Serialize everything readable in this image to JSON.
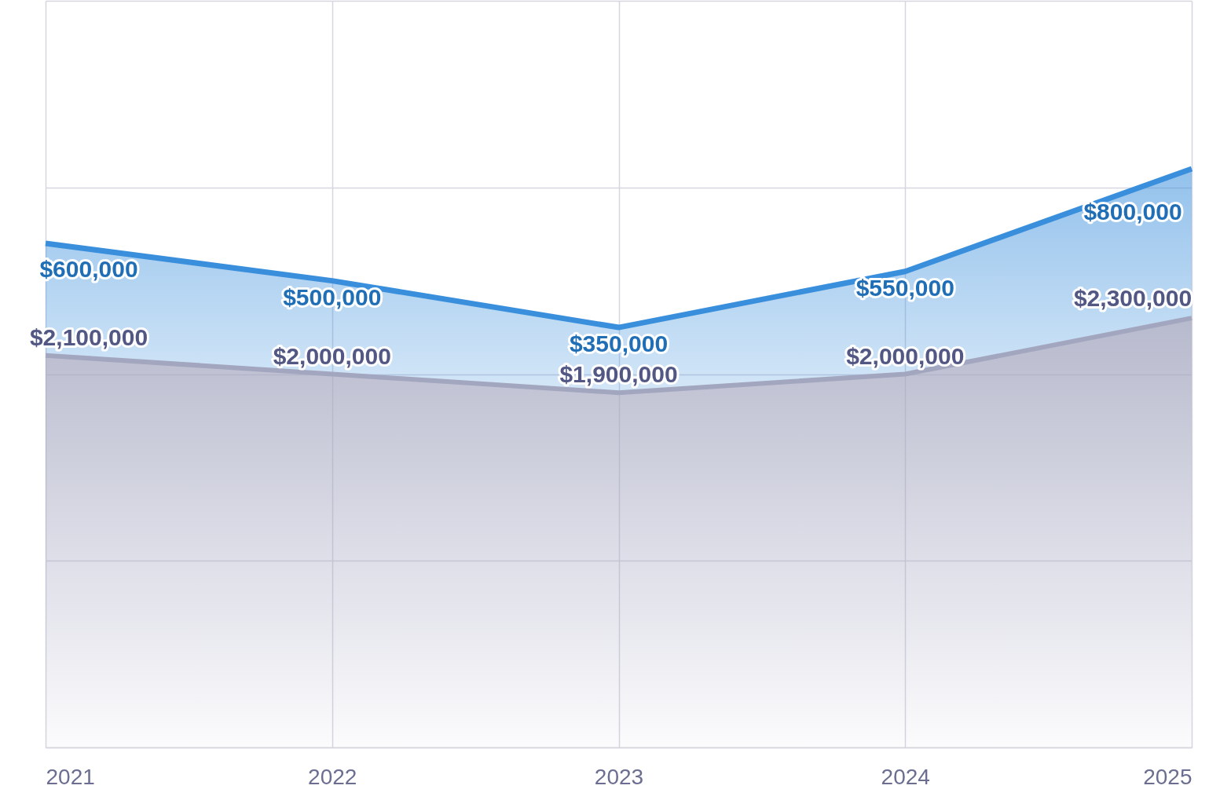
{
  "chart_data": {
    "type": "area",
    "stacked": true,
    "categories": [
      "2021",
      "2022",
      "2023",
      "2024",
      "2025"
    ],
    "series": [
      {
        "color": "#a3a6bf",
        "values": [
          2100000,
          2000000,
          1900000,
          2000000,
          2300000
        ],
        "value_labels": [
          "$2,100,000",
          "$2,000,000",
          "$1,900,000",
          "$2,000,000",
          "$2,300,000"
        ]
      },
      {
        "color": "#3a8fdc",
        "values": [
          600000,
          500000,
          350000,
          550000,
          800000
        ],
        "value_labels": [
          "$600,000",
          "$500,000",
          "$350,000",
          "$550,000",
          "$800,000"
        ]
      }
    ],
    "ylim": [
      0,
      4000000
    ],
    "yticks": [
      {
        "value": 0,
        "label": null
      },
      {
        "value": 1000000,
        "label": null
      },
      {
        "value": 2000000,
        "label": null
      },
      {
        "value": 3000000,
        "label": null
      },
      {
        "value": 4000000,
        "label": null
      }
    ],
    "grid": true,
    "tick_labels": "x"
  }
}
